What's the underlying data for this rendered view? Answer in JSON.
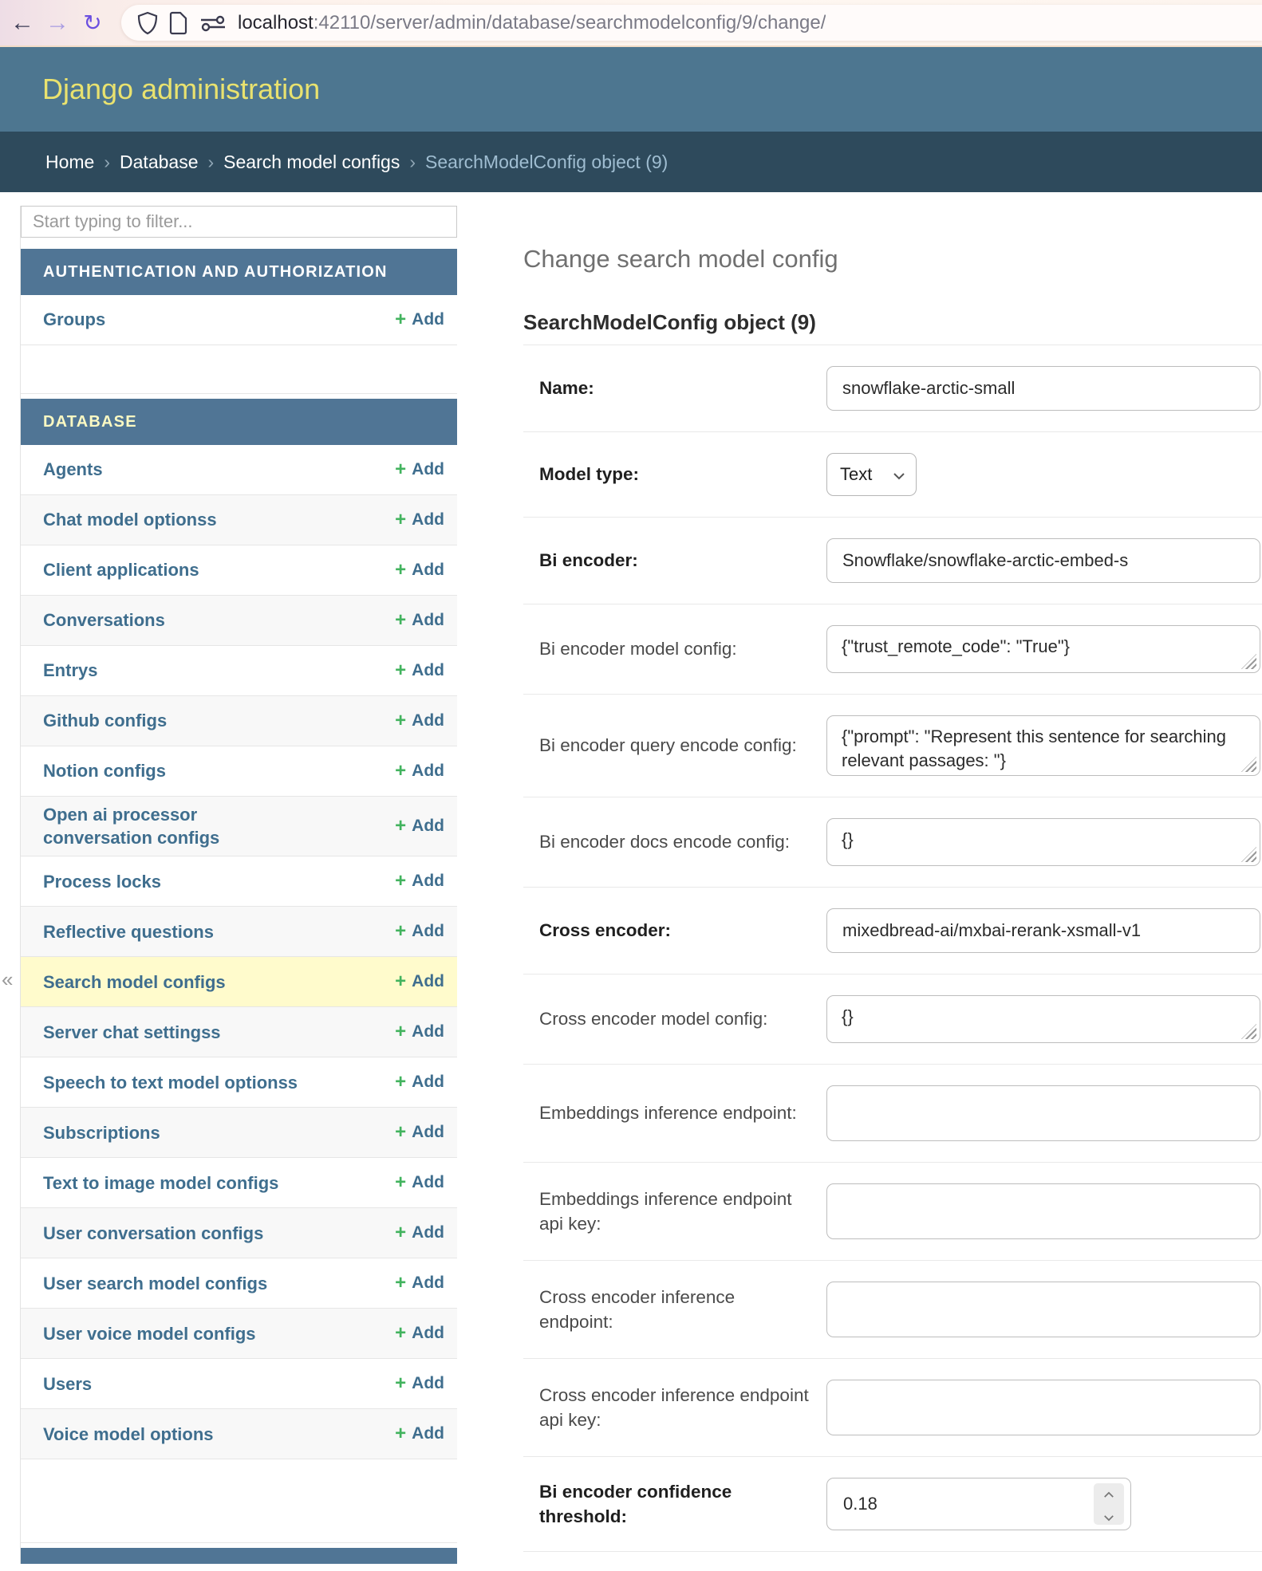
{
  "browser": {
    "url_host": "localhost",
    "url_rest": ":42110/server/admin/database/searchmodelconfig/9/change/"
  },
  "header": {
    "title": "Django administration"
  },
  "breadcrumb": {
    "separator": "›",
    "links": [
      "Home",
      "Database",
      "Search model configs"
    ],
    "current": "SearchModelConfig object (9)"
  },
  "sidebar": {
    "filter_placeholder": "Start typing to filter...",
    "collapse_glyph": "«",
    "add_label": "Add",
    "plus_glyph": "+",
    "sections": [
      {
        "caption": "AUTHENTICATION AND AUTHORIZATION",
        "caption_variant": "white",
        "trailing_empty_row": "normal",
        "items": [
          {
            "label": "Groups",
            "name": "groups"
          }
        ]
      },
      {
        "caption": "DATABASE",
        "caption_variant": "yellow",
        "trailing_empty_row": "tall",
        "items": [
          {
            "label": "Agents",
            "name": "agents"
          },
          {
            "label": "Chat model optionss",
            "name": "chat-model-optionss"
          },
          {
            "label": "Client applications",
            "name": "client-applications"
          },
          {
            "label": "Conversations",
            "name": "conversations"
          },
          {
            "label": "Entrys",
            "name": "entrys"
          },
          {
            "label": "Github configs",
            "name": "github-configs"
          },
          {
            "label": "Notion configs",
            "name": "notion-configs"
          },
          {
            "label": "Open ai processor conversation configs",
            "name": "open-ai-processor-conversation-configs"
          },
          {
            "label": "Process locks",
            "name": "process-locks"
          },
          {
            "label": "Reflective questions",
            "name": "reflective-questions"
          },
          {
            "label": "Search model configs",
            "name": "search-model-configs",
            "selected": true
          },
          {
            "label": "Server chat settingss",
            "name": "server-chat-settingss"
          },
          {
            "label": "Speech to text model optionss",
            "name": "speech-to-text-model-optionss"
          },
          {
            "label": "Subscriptions",
            "name": "subscriptions"
          },
          {
            "label": "Text to image model configs",
            "name": "text-to-image-model-configs"
          },
          {
            "label": "User conversation configs",
            "name": "user-conversation-configs"
          },
          {
            "label": "User search model configs",
            "name": "user-search-model-configs"
          },
          {
            "label": "User voice model configs",
            "name": "user-voice-model-configs"
          },
          {
            "label": "Users",
            "name": "users"
          },
          {
            "label": "Voice model options",
            "name": "voice-model-options"
          }
        ]
      }
    ]
  },
  "main": {
    "page_title": "Change search model config",
    "object_title": "SearchModelConfig object (9)",
    "fields": [
      {
        "name": "name",
        "label": "Name:",
        "required": true,
        "type": "text",
        "value": "snowflake-arctic-small"
      },
      {
        "name": "model-type",
        "label": "Model type:",
        "required": true,
        "type": "select",
        "value": "Text"
      },
      {
        "name": "bi-encoder",
        "label": "Bi encoder:",
        "required": true,
        "type": "text",
        "value": "Snowflake/snowflake-arctic-embed-s"
      },
      {
        "name": "bi-encoder-model-config",
        "label": "Bi encoder model config:",
        "required": false,
        "type": "textarea",
        "rows": 1,
        "value": "{\"trust_remote_code\": \"True\"}"
      },
      {
        "name": "bi-encoder-query-encode-config",
        "label": "Bi encoder query encode config:",
        "required": false,
        "type": "textarea",
        "rows": 2,
        "value": "{\"prompt\": \"Represent this sentence for searching relevant passages: \"}"
      },
      {
        "name": "bi-encoder-docs-encode-config",
        "label": "Bi encoder docs encode config:",
        "required": false,
        "type": "textarea",
        "rows": 1,
        "value": "{}"
      },
      {
        "name": "cross-encoder",
        "label": "Cross encoder:",
        "required": true,
        "type": "text",
        "value": "mixedbread-ai/mxbai-rerank-xsmall-v1"
      },
      {
        "name": "cross-encoder-model-config",
        "label": "Cross encoder model config:",
        "required": false,
        "type": "textarea",
        "rows": 1,
        "value": "{}"
      },
      {
        "name": "embeddings-inference-endpoint",
        "label": "Embeddings inference endpoint:",
        "required": false,
        "type": "text-empty",
        "value": ""
      },
      {
        "name": "embeddings-inference-endpoint-api-key",
        "label": "Embeddings inference endpoint api key:",
        "required": false,
        "type": "text-empty",
        "value": ""
      },
      {
        "name": "cross-encoder-inference-endpoint",
        "label": "Cross encoder inference endpoint:",
        "required": false,
        "type": "text-empty",
        "value": ""
      },
      {
        "name": "cross-encoder-inference-endpoint-api-key",
        "label": "Cross encoder inference endpoint api key:",
        "required": false,
        "type": "text-empty",
        "value": ""
      },
      {
        "name": "bi-encoder-confidence-threshold",
        "label": "Bi encoder confidence threshold:",
        "required": true,
        "type": "number",
        "value": "0.18"
      }
    ]
  },
  "colors": {
    "header_bg": "#4d7690",
    "breadcrumb_bg": "#2e4a5c",
    "section_caption_bg": "#507595",
    "header_title_yellow": "#e9e26f",
    "caption_yellow_text": "#fbf9c3",
    "sidebar_link": "#3f6e8e",
    "selected_row_bg": "#fffbcc",
    "add_plus_green": "#42b35e",
    "row_alt_bg": "#f8f8f8"
  }
}
